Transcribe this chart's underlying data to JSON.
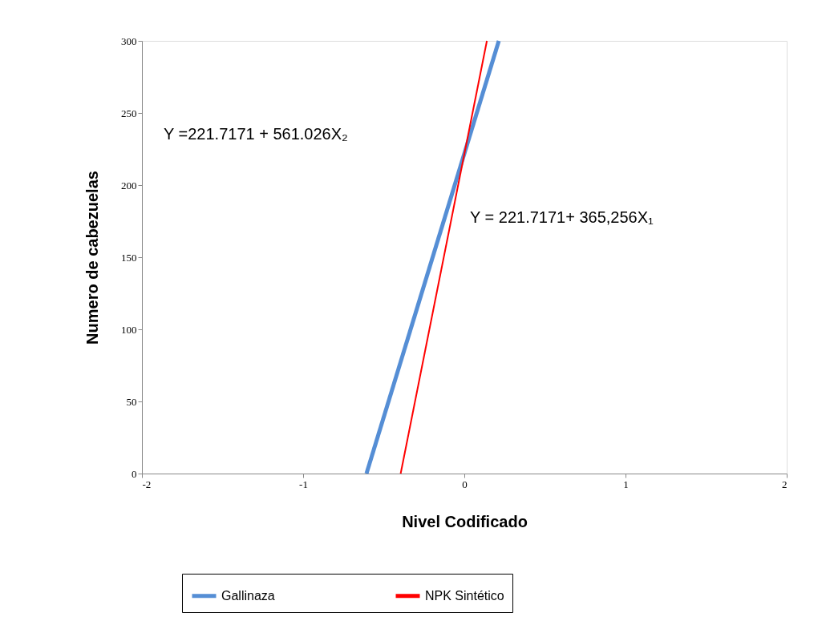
{
  "chart_data": {
    "type": "line",
    "xlabel": "Nivel Codificado",
    "ylabel": "Numero de cabezuelas",
    "xlim": [
      -2,
      2
    ],
    "xticks": [
      {
        "value": -2,
        "label": "-2"
      },
      {
        "value": -1,
        "label": "-1"
      },
      {
        "value": 0,
        "label": "0"
      },
      {
        "value": 1,
        "label": "1"
      },
      {
        "value": 2,
        "label": "2"
      }
    ],
    "ylim": [
      0,
      300
    ],
    "yticks": [
      0,
      50,
      100,
      150,
      200,
      250,
      300
    ],
    "series": [
      {
        "name": "Gallinaza",
        "color": "#558ed5",
        "x": [
          -0.607,
          0.214
        ],
        "values": [
          0,
          300
        ]
      },
      {
        "name": "NPK Sintético",
        "color": "#ff0000",
        "x": [
          -0.395,
          0.14
        ],
        "values": [
          0,
          300
        ]
      }
    ],
    "annotations": [
      "Y =221.7171 + 561.026X₂",
      "Y = 221.7171+ 365,256X₁"
    ],
    "legend": "bottom",
    "grid": false,
    "marker": "none",
    "line_style": "solid"
  }
}
